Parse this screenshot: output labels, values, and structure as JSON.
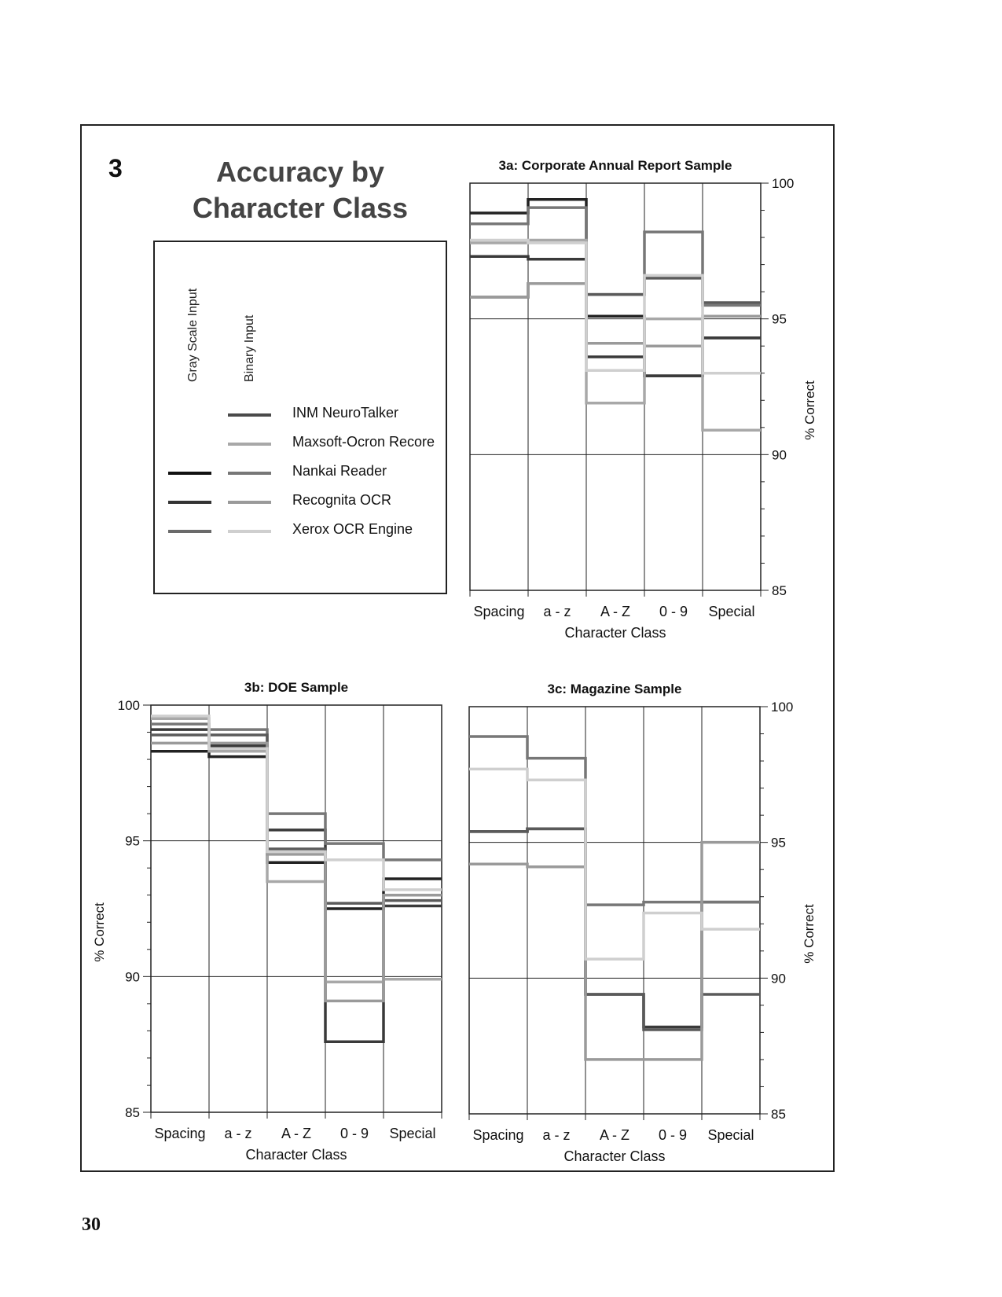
{
  "figure": {
    "number": "3",
    "title_line1": "Accuracy by",
    "title_line2": "Character Class",
    "page_number": "30"
  },
  "legend": {
    "col_gray": "Gray Scale Input",
    "col_binary": "Binary Input",
    "entries": [
      {
        "label": "INM NeuroTalker",
        "gray": null,
        "binary": "#4a4a4a"
      },
      {
        "label": "Maxsoft-Ocron Recore",
        "gray": null,
        "binary": "#a8a8a8"
      },
      {
        "label": "Nankai Reader",
        "gray": "#111111",
        "binary": "#777777"
      },
      {
        "label": "Recognita OCR",
        "gray": "#333333",
        "binary": "#9a9a9a"
      },
      {
        "label": "Xerox OCR Engine",
        "gray": "#6a6a6a",
        "binary": "#cfcfcf"
      }
    ]
  },
  "chart_data": [
    {
      "type": "line",
      "title": "3a: Corporate Annual Report Sample",
      "xlabel": "Character Class",
      "ylabel": "% Correct",
      "categories": [
        "Spacing",
        "a - z",
        "A - Z",
        "0 - 9",
        "Special"
      ],
      "ylim": [
        85,
        100
      ],
      "yticks": [
        "100",
        "95",
        "90",
        "85"
      ],
      "y_axis_side": "right",
      "series": [
        {
          "color": "#222222",
          "values": [
            98.9,
            99.4,
            95.1,
            92.9,
            94.3
          ]
        },
        {
          "color": "#3a3a3a",
          "values": [
            97.3,
            97.2,
            93.6,
            92.9,
            94.3
          ]
        },
        {
          "color": "#777777",
          "values": [
            98.5,
            99.1,
            95.9,
            98.2,
            95.5
          ]
        },
        {
          "color": "#5a5a5a",
          "values": [
            95.8,
            96.3,
            95.9,
            96.5,
            95.6
          ]
        },
        {
          "color": "#a8a8a8",
          "values": [
            97.8,
            97.9,
            91.9,
            95.0,
            90.9
          ]
        },
        {
          "color": "#9a9a9a",
          "values": [
            95.8,
            96.3,
            94.1,
            94.0,
            95.1
          ]
        },
        {
          "color": "#cfcfcf",
          "values": [
            97.9,
            97.8,
            93.1,
            96.6,
            93.0
          ]
        }
      ]
    },
    {
      "type": "line",
      "title": "3b: DOE Sample",
      "xlabel": "Character Class",
      "ylabel": "% Correct",
      "categories": [
        "Spacing",
        "a - z",
        "A - Z",
        "0 - 9",
        "Special"
      ],
      "ylim": [
        85,
        100
      ],
      "yticks": [
        "100",
        "95",
        "90",
        "85"
      ],
      "y_axis_side": "left",
      "series": [
        {
          "color": "#222222",
          "values": [
            98.3,
            98.1,
            94.2,
            92.5,
            93.6
          ]
        },
        {
          "color": "#3a3a3a",
          "values": [
            99.1,
            98.5,
            95.4,
            87.6,
            92.6
          ]
        },
        {
          "color": "#777777",
          "values": [
            99.3,
            99.1,
            96.0,
            94.9,
            94.3
          ]
        },
        {
          "color": "#5a5a5a",
          "values": [
            98.9,
            98.9,
            94.7,
            92.7,
            92.8
          ]
        },
        {
          "color": "#a8a8a8",
          "values": [
            99.5,
            98.3,
            93.5,
            89.8,
            89.9
          ]
        },
        {
          "color": "#9a9a9a",
          "values": [
            98.6,
            98.6,
            94.5,
            89.1,
            93.0
          ]
        },
        {
          "color": "#cfcfcf",
          "values": [
            99.6,
            98.4,
            94.6,
            94.3,
            93.2
          ]
        }
      ]
    },
    {
      "type": "line",
      "title": "3c: Magazine Sample",
      "xlabel": "Character Class",
      "ylabel": "% Correct",
      "categories": [
        "Spacing",
        "a - z",
        "A - Z",
        "0 - 9",
        "Special"
      ],
      "ylim": [
        85,
        100
      ],
      "yticks": [
        "100",
        "95",
        "90",
        "85"
      ],
      "y_axis_side": "right",
      "series": [
        {
          "color": "#3a3a3a",
          "values": [
            95.4,
            95.5,
            89.4,
            88.2,
            92.8
          ]
        },
        {
          "color": "#777777",
          "values": [
            98.9,
            98.1,
            92.7,
            92.8,
            92.8
          ]
        },
        {
          "color": "#5a5a5a",
          "values": [
            95.4,
            95.5,
            89.4,
            88.1,
            89.4
          ]
        },
        {
          "color": "#9a9a9a",
          "values": [
            94.2,
            94.1,
            87.0,
            87.0,
            95.0
          ]
        },
        {
          "color": "#cfcfcf",
          "values": [
            97.7,
            97.3,
            90.7,
            92.4,
            91.8
          ]
        }
      ]
    }
  ]
}
